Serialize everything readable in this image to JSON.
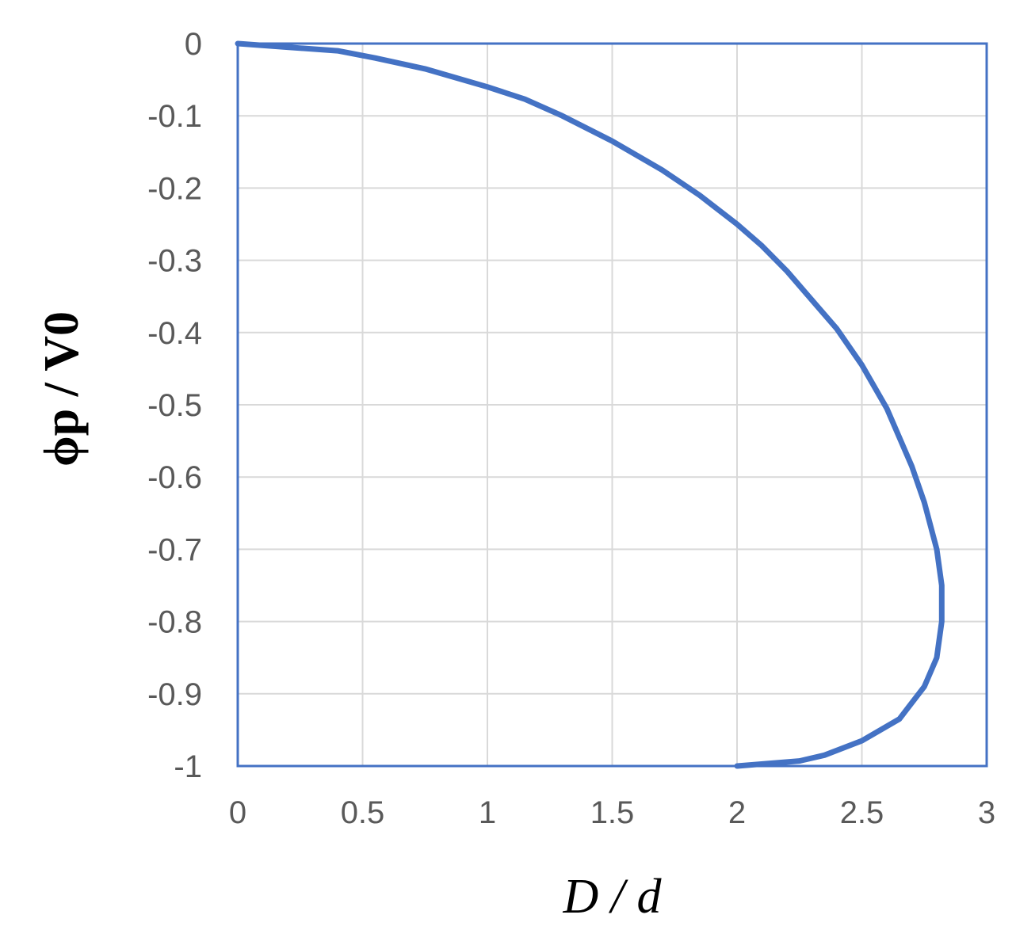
{
  "chart_data": {
    "type": "line",
    "title": "",
    "xlabel": "D / d",
    "ylabel": "ϕp / V0",
    "xlim": [
      0,
      3
    ],
    "ylim": [
      -1,
      0
    ],
    "x_ticks": [
      "0",
      "0.5",
      "1",
      "1.5",
      "2",
      "2.5",
      "3"
    ],
    "y_ticks": [
      "0",
      "-0.1",
      "-0.2",
      "-0.3",
      "-0.4",
      "-0.5",
      "-0.6",
      "-0.7",
      "-0.8",
      "-0.9",
      "-1"
    ],
    "grid": true,
    "legend": "none",
    "series": [
      {
        "x": [
          0,
          0.2,
          0.4,
          0.55,
          0.75,
          1.0,
          1.15,
          1.3,
          1.5,
          1.7,
          1.85,
          2.0,
          2.1,
          2.2,
          2.3,
          2.4,
          2.5,
          2.6,
          2.7,
          2.75,
          2.8,
          2.82,
          2.82,
          2.8,
          2.75,
          2.65,
          2.5,
          2.35,
          2.25,
          2.0
        ],
        "y": [
          0,
          -0.005,
          -0.01,
          -0.02,
          -0.035,
          -0.06,
          -0.077,
          -0.1,
          -0.135,
          -0.175,
          -0.21,
          -0.25,
          -0.28,
          -0.315,
          -0.355,
          -0.395,
          -0.445,
          -0.505,
          -0.585,
          -0.635,
          -0.7,
          -0.75,
          -0.8,
          -0.85,
          -0.89,
          -0.935,
          -0.965,
          -0.985,
          -0.993,
          -1
        ]
      }
    ],
    "colors": {
      "line": "#4472c4",
      "frame": "#4472c4",
      "grid": "#d9d9d9"
    }
  }
}
